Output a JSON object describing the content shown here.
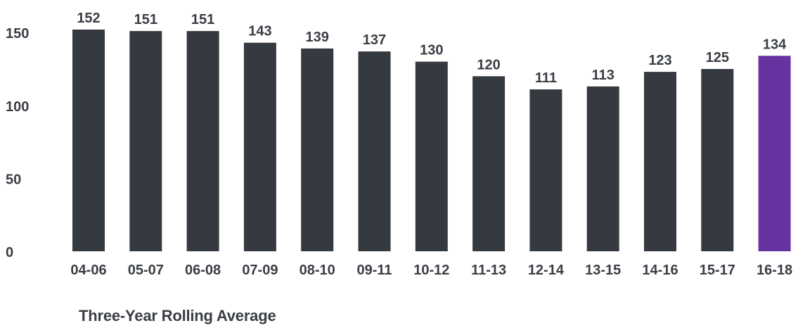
{
  "chart_data": {
    "type": "bar",
    "categories": [
      "04-06",
      "05-07",
      "06-08",
      "07-09",
      "08-10",
      "09-11",
      "10-12",
      "11-13",
      "12-14",
      "13-15",
      "14-16",
      "15-17",
      "16-18"
    ],
    "values": [
      152,
      151,
      151,
      143,
      139,
      137,
      130,
      120,
      111,
      113,
      123,
      125,
      134
    ],
    "data_labels": [
      "152",
      "151",
      "151",
      "143",
      "139",
      "137",
      "130",
      "120",
      "111",
      "113",
      "123",
      "125",
      "134"
    ],
    "yticks": [
      0,
      50,
      100,
      150
    ],
    "ytick_labels": [
      "0",
      "50",
      "100",
      "150"
    ],
    "ylim": [
      0,
      160
    ],
    "xlabel": "Three-Year Rolling Average",
    "grid": false,
    "legend": "none",
    "colors": {
      "bar": "#353a40",
      "highlight": "#6633a1",
      "text": "#3a3e44"
    },
    "highlight_category": "16-18"
  }
}
